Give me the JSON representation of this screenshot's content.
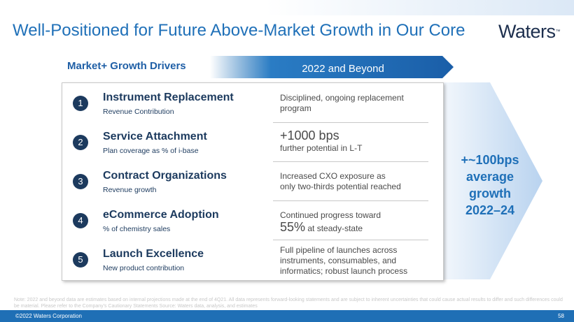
{
  "header": {
    "title": "Well-Positioned for Future Above-Market Growth in Our Core",
    "logo": "Waters",
    "logo_mark": "™"
  },
  "table": {
    "left_header": "Market+ Growth Drivers",
    "right_header": "2022 and Beyond",
    "rows": [
      {
        "number": 1,
        "name": "Instrument Replacement",
        "subtitle": "Revenue Contribution",
        "detail_lines": [
          "Disciplined, ongoing replacement",
          "program"
        ]
      },
      {
        "number": 2,
        "name": "Service Attachment",
        "subtitle": "Plan coverage as % of i-base",
        "highlight": "+1000 bps",
        "detail_lines": [
          "further potential in L-T"
        ]
      },
      {
        "number": 3,
        "name": "Contract Organizations",
        "subtitle": "Revenue growth",
        "detail_lines": [
          "Increased CXO exposure as",
          "only two-thirds potential reached"
        ]
      },
      {
        "number": 4,
        "name": "eCommerce Adoption",
        "subtitle": "% of chemistry sales",
        "lead": "Continued progress toward",
        "highlight": "55%",
        "detail_lines": [
          "at steady-state"
        ]
      },
      {
        "number": 5,
        "name": "Launch Excellence",
        "subtitle": "New product contribution",
        "detail_lines": [
          "Full pipeline of launches across",
          "instruments, consumables, and",
          "informatics; robust launch process"
        ]
      }
    ]
  },
  "callout": {
    "lines": [
      "+~100bps",
      "average",
      "growth",
      "2022–24"
    ]
  },
  "note": "Note: 2022 and beyond data are estimates based on internal projections made at the end of 4Q21. All data represents forward-looking statements and are subject to inherent uncertainties that could cause actual results to differ and such differences could be material. Please refer to the Company's Cautionary Statements Source: Waters data, analysis, and estimates",
  "footer": {
    "copyright": "©2022 Waters Corporation",
    "page": 58
  }
}
